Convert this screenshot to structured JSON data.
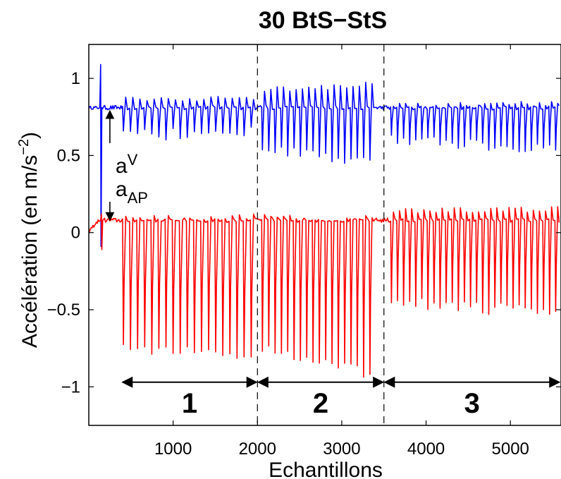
{
  "chart_data": {
    "type": "line",
    "title": "30 BtS−StS",
    "xlabel": "Echantillons",
    "ylabel_main": "Accélération (en m/s",
    "ylabel_sup": "−2",
    "ylabel_close": ")",
    "xlim": [
      0,
      5600
    ],
    "ylim": [
      -1.25,
      1.22
    ],
    "xticks": [
      {
        "value": 1000,
        "label": "1000"
      },
      {
        "value": 2000,
        "label": "2000"
      },
      {
        "value": 3000,
        "label": "3000"
      },
      {
        "value": 4000,
        "label": "4000"
      },
      {
        "value": 5000,
        "label": "5000"
      }
    ],
    "yticks": [
      {
        "value": 1,
        "label": "1"
      },
      {
        "value": 0.5,
        "label": "0.5"
      },
      {
        "value": 0,
        "label": "0"
      },
      {
        "value": -0.5,
        "label": "−0.5"
      },
      {
        "value": -1,
        "label": "−1"
      }
    ],
    "dividers": [
      2000,
      3500
    ],
    "segments": [
      {
        "label": "1",
        "from": 400,
        "to": 1990
      },
      {
        "label": "2",
        "from": 2010,
        "to": 3490
      },
      {
        "label": "3",
        "from": 3510,
        "to": 5580
      }
    ],
    "segment_arrow_y": -0.97,
    "annotations": {
      "a_v": {
        "base": "a",
        "sub": "V",
        "x": 250,
        "from_y": 0.58,
        "to_y": 0.79
      },
      "a_ap": {
        "base": "a",
        "sub": "AP",
        "x": 250,
        "from_y": 0.2,
        "to_y": 0.08
      }
    },
    "series": [
      {
        "key": "vertical",
        "color": "#0000ff",
        "baseline": 0.81,
        "spike": {
          "x": 140,
          "high": 1.09,
          "low": -0.09
        },
        "gaps": [
          [
            1950,
            2060
          ],
          [
            3380,
            3580
          ]
        ],
        "cycles": [
          {
            "start": 400,
            "end": 2000,
            "n": 19,
            "depth": [
              0.62,
              0.67
            ],
            "peak": [
              0.86,
              0.88
            ]
          },
          {
            "start": 2050,
            "end": 3400,
            "n": 18,
            "depth": [
              0.55,
              0.44
            ],
            "peak": [
              0.93,
              0.96
            ]
          },
          {
            "start": 3580,
            "end": 5600,
            "n": 28,
            "depth": [
              0.6,
              0.55
            ],
            "peak": [
              0.82,
              0.84
            ]
          }
        ]
      },
      {
        "key": "antero-posterior",
        "color": "#ff0000",
        "baseline": 0.08,
        "spike": {
          "x": 150,
          "high": 0.12,
          "low": -0.11
        },
        "gaps": [
          [
            1950,
            2060
          ],
          [
            3380,
            3580
          ]
        ],
        "cycles": [
          {
            "start": 400,
            "end": 2000,
            "n": 19,
            "depth": [
              -0.74,
              -0.8
            ],
            "peak": [
              0.09,
              0.1
            ]
          },
          {
            "start": 2050,
            "end": 3400,
            "n": 18,
            "depth": [
              -0.75,
              -0.92
            ],
            "peak": [
              0.1,
              0.09
            ]
          },
          {
            "start": 3580,
            "end": 5600,
            "n": 28,
            "depth": [
              -0.45,
              -0.52
            ],
            "peak": [
              0.14,
              0.15
            ]
          }
        ]
      }
    ]
  }
}
